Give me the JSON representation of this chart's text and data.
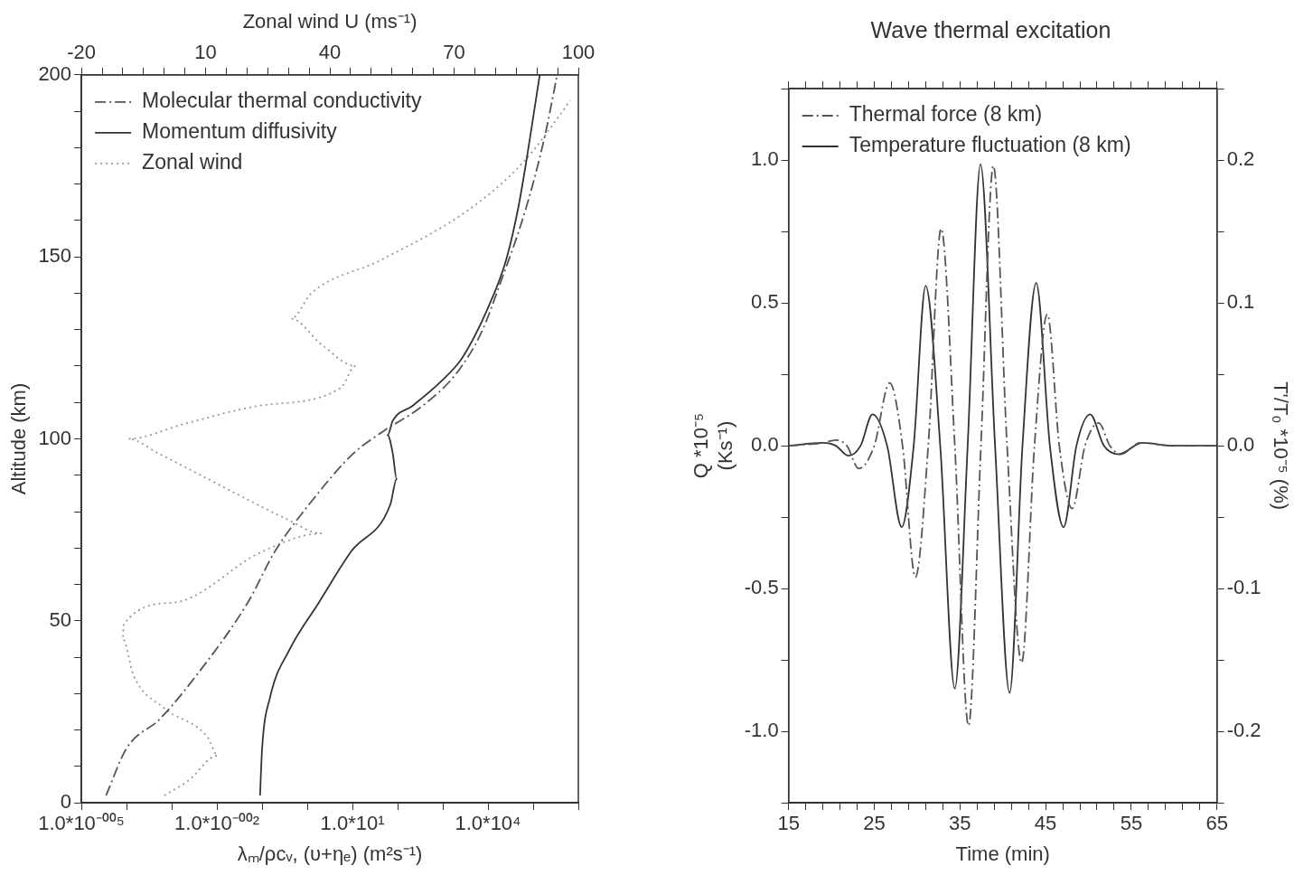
{
  "chart_data": [
    {
      "type": "line",
      "xlabel": "λₘ/ρcᵥ, (υ+ηₑ) (m²s⁻¹)",
      "ylabel": "Altitude (km)",
      "x2label": "Zonal wind U (ms⁻¹)",
      "log": "x",
      "grid": false,
      "legend": "top left",
      "marker": "none",
      "xlim": [
        1e-05,
        1000000
      ],
      "xticks": [
        {
          "value": 1e-05,
          "label": "1.0*10⁻⁰⁰⁵"
        },
        {
          "value": 0.0001,
          "label": null
        },
        {
          "value": 0.001,
          "label": null
        },
        {
          "value": 0.01,
          "label": "1.0*10⁻⁰⁰²"
        },
        {
          "value": 0.1,
          "label": null
        },
        {
          "value": 1,
          "label": null
        },
        {
          "value": 10,
          "label": "1.0*10¹"
        },
        {
          "value": 100,
          "label": null
        },
        {
          "value": 1000,
          "label": null
        },
        {
          "value": 10000,
          "label": "1.0*10⁴"
        },
        {
          "value": 100000,
          "label": null
        },
        {
          "value": 1000000,
          "label": null
        }
      ],
      "x2lim": [
        -20,
        100
      ],
      "x2ticks": [
        -20,
        {
          "value": -15,
          "label": null
        },
        {
          "value": -10,
          "label": null
        },
        {
          "value": -5,
          "label": null
        },
        {
          "value": 0,
          "label": null
        },
        {
          "value": 5,
          "label": null
        },
        10,
        {
          "value": 15,
          "label": null
        },
        {
          "value": 20,
          "label": null
        },
        {
          "value": 25,
          "label": null
        },
        {
          "value": 30,
          "label": null
        },
        {
          "value": 35,
          "label": null
        },
        40,
        {
          "value": 45,
          "label": null
        },
        {
          "value": 50,
          "label": null
        },
        {
          "value": 55,
          "label": null
        },
        {
          "value": 60,
          "label": null
        },
        {
          "value": 65,
          "label": null
        },
        70,
        {
          "value": 75,
          "label": null
        },
        {
          "value": 80,
          "label": null
        },
        {
          "value": 85,
          "label": null
        },
        {
          "value": 90,
          "label": null
        },
        {
          "value": 95,
          "label": null
        },
        100
      ],
      "ylim": [
        0,
        200
      ],
      "yticks": [
        0,
        {
          "value": 10,
          "label": null
        },
        {
          "value": 20,
          "label": null
        },
        {
          "value": 30,
          "label": null
        },
        {
          "value": 40,
          "label": null
        },
        50,
        {
          "value": 60,
          "label": null
        },
        {
          "value": 70,
          "label": null
        },
        {
          "value": 80,
          "label": null
        },
        {
          "value": 90,
          "label": null
        },
        100,
        {
          "value": 110,
          "label": null
        },
        {
          "value": 120,
          "label": null
        },
        {
          "value": 130,
          "label": null
        },
        {
          "value": 140,
          "label": null
        },
        150,
        {
          "value": 160,
          "label": null
        },
        {
          "value": 170,
          "label": null
        },
        {
          "value": 180,
          "label": null
        },
        {
          "value": 190,
          "label": null
        },
        200
      ],
      "series": [
        {
          "name": "Molecular thermal conductivity",
          "color": "#555555",
          "line_style": "dashed",
          "x": [
            3.5e-05,
            0.0001,
            0.00054,
            0.0035,
            0.048,
            0.19,
            1.1,
            10.5,
            47,
            350,
            2000,
            7000,
            19000,
            68000,
            180000,
            340000
          ],
          "values": [
            2,
            15,
            23,
            35,
            55,
            69,
            82,
            96,
            102,
            109,
            118,
            129,
            143,
            163,
            183,
            200
          ]
        },
        {
          "name": "Momentum diffusivity",
          "color": "#333333",
          "line_style": "solid",
          "x": [
            0.09,
            0.1,
            0.15,
            0.4,
            1.8,
            9.3,
            69,
            95,
            78,
            60,
            78,
            210,
            950,
            2600,
            10000,
            25000,
            46000,
            70000,
            105000,
            140000
          ],
          "values": [
            2,
            15,
            29,
            42,
            55,
            69,
            82,
            89,
            96,
            101,
            105,
            109,
            116,
            122,
            136,
            149,
            163,
            176,
            190,
            200
          ]
        },
        {
          "name": "Zonal wind",
          "color": "#999999",
          "line_style": "dotted",
          "axis": "x2",
          "x": [
            0,
            5.7,
            12.9,
            10.5,
            0,
            -7.4,
            -10,
            -9.8,
            2.1,
            23.6,
            37.9,
            29.5,
            22.4,
            10.5,
            -1.4,
            -8.6,
            4.5,
            22.4,
            42.6,
            46.2,
            37.9,
            30.7,
            35.5,
            52.1,
            73.6,
            86.7,
            96.2,
            98
          ],
          "values": [
            2,
            6,
            13,
            18,
            26,
            35,
            45,
            49,
            55,
            69,
            74,
            78,
            82,
            89,
            96,
            100,
            104,
            109,
            114,
            120,
            126,
            133,
            140,
            149,
            163,
            176,
            190,
            193
          ]
        }
      ]
    },
    {
      "type": "line",
      "title": "Wave thermal excitation",
      "xlabel": "Time (min)",
      "ylabel": "Q *10⁻⁵\n(Ks⁻¹)",
      "y2label": "T'/T₀ *10⁻⁵ (%)",
      "grid": false,
      "legend": "top left",
      "marker": "none",
      "xlim": [
        15,
        65
      ],
      "xticks": [
        15,
        {
          "value": 17,
          "label": null
        },
        {
          "value": 19,
          "label": null
        },
        {
          "value": 21,
          "label": null
        },
        {
          "value": 23,
          "label": null
        },
        25,
        {
          "value": 27,
          "label": null
        },
        {
          "value": 29,
          "label": null
        },
        {
          "value": 31,
          "label": null
        },
        {
          "value": 33,
          "label": null
        },
        35,
        {
          "value": 37,
          "label": null
        },
        {
          "value": 39,
          "label": null
        },
        {
          "value": 41,
          "label": null
        },
        {
          "value": 43,
          "label": null
        },
        45,
        {
          "value": 47,
          "label": null
        },
        {
          "value": 49,
          "label": null
        },
        {
          "value": 51,
          "label": null
        },
        {
          "value": 53,
          "label": null
        },
        55,
        {
          "value": 57,
          "label": null
        },
        {
          "value": 59,
          "label": null
        },
        {
          "value": 61,
          "label": null
        },
        {
          "value": 63,
          "label": null
        },
        65
      ],
      "ylim": [
        -1.25,
        1.25
      ],
      "yticks": [
        {
          "value": -1.25,
          "label": null
        },
        {
          "value": -1,
          "label": "-1.0"
        },
        {
          "value": -0.75,
          "label": null
        },
        -0.5,
        {
          "value": -0.25,
          "label": null
        },
        {
          "value": 0,
          "label": "0.0"
        },
        {
          "value": 0.25,
          "label": null
        },
        0.5,
        {
          "value": 0.75,
          "label": null
        },
        {
          "value": 1,
          "label": "1.0"
        },
        {
          "value": 1.25,
          "label": null
        }
      ],
      "y2lim": [
        -0.25,
        0.25
      ],
      "y2ticks": [
        {
          "value": -0.25,
          "label": null
        },
        -0.2,
        {
          "value": -0.15,
          "label": null
        },
        -0.1,
        {
          "value": -0.05,
          "label": null
        },
        {
          "value": 0,
          "label": "0.0"
        },
        {
          "value": 0.05,
          "label": null
        },
        0.1,
        {
          "value": 0.15,
          "label": null
        },
        0.2,
        {
          "value": 0.25,
          "label": null
        }
      ],
      "series": [
        {
          "name": "Thermal force (8 km)",
          "color": "#555555",
          "line_style": "dashed",
          "x": [
            15,
            19,
            20.5,
            21.8,
            23.2,
            25,
            26.8,
            28.3,
            29.8,
            31.3,
            32.8,
            34.4,
            36,
            37.45,
            38.9,
            40.5,
            42.2,
            43.7,
            45.2,
            46.6,
            48.1,
            49.6,
            51.2,
            52.5,
            53.8,
            56,
            60,
            65
          ],
          "values": [
            0,
            0.01,
            0.02,
            0,
            -0.08,
            0,
            0.22,
            0,
            -0.46,
            0,
            0.76,
            0,
            -0.98,
            0,
            0.98,
            0,
            -0.76,
            0,
            0.46,
            0,
            -0.22,
            0,
            0.08,
            0,
            -0.03,
            0.01,
            0,
            0
          ]
        },
        {
          "name": "Temperature fluctuation (8 km)",
          "color": "#333333",
          "line_style": "solid",
          "axis": "y2",
          "x": [
            15,
            19,
            20.5,
            22,
            23.4,
            24.8,
            26.5,
            28.2,
            29.6,
            31,
            32.7,
            34.4,
            35.9,
            37.4,
            39.1,
            40.8,
            42.3,
            43.9,
            45.5,
            47.1,
            48.6,
            50.2,
            51.8,
            53.5,
            56.3,
            60,
            65
          ],
          "values": [
            0,
            0.002,
            0,
            -0.007,
            0,
            0.022,
            0,
            -0.057,
            0,
            0.112,
            0,
            -0.17,
            0,
            0.197,
            0,
            -0.173,
            0,
            0.114,
            0,
            -0.057,
            0,
            0.022,
            0,
            -0.006,
            0.002,
            0,
            0
          ]
        }
      ]
    }
  ]
}
